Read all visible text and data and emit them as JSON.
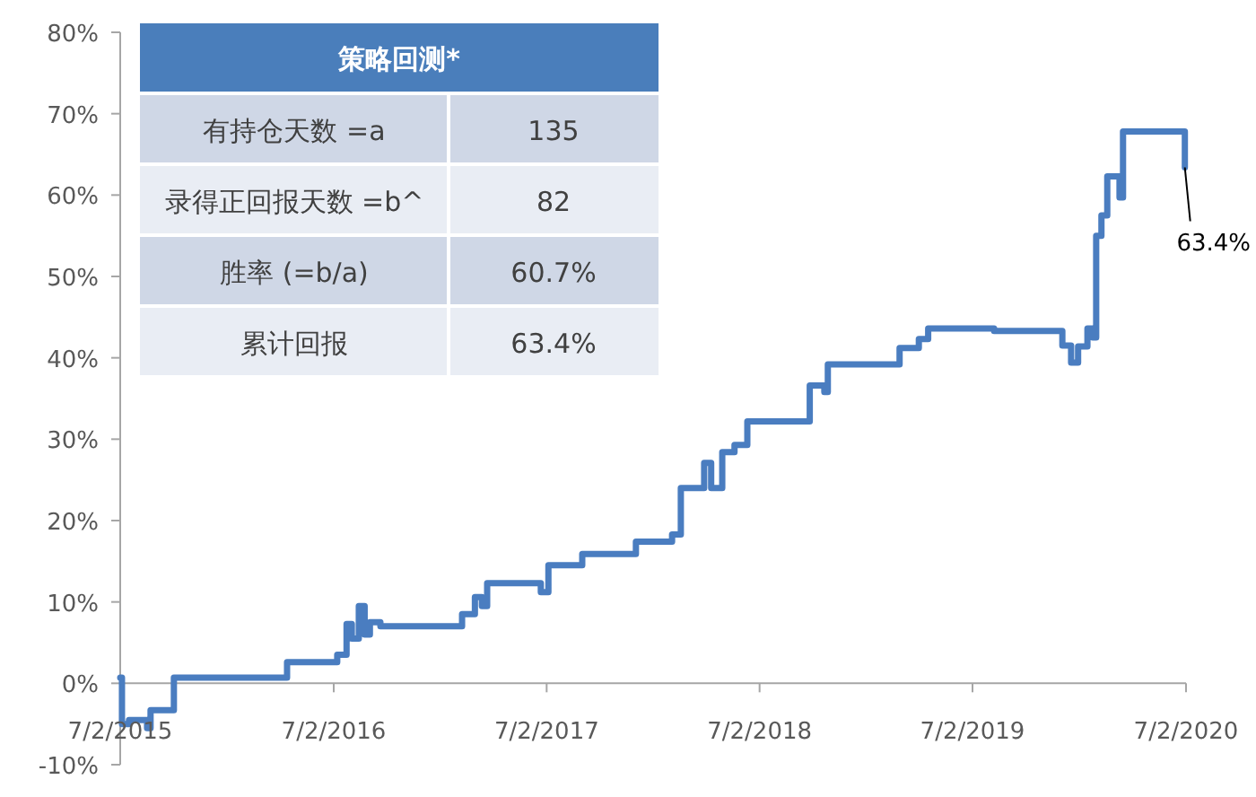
{
  "chart_data": [
    {
      "type": "step",
      "line_style": "solid",
      "marker": "none",
      "grid": false,
      "x": [
        "2015-07-02",
        "2015-07-05",
        "2015-07-17",
        "2015-08-17",
        "2015-08-23",
        "2015-10-02",
        "2016-04-13",
        "2016-07-08",
        "2016-07-24",
        "2016-08-02",
        "2016-08-14",
        "2016-08-24",
        "2016-09-02",
        "2016-09-20",
        "2017-02-07",
        "2017-03-01",
        "2017-03-13",
        "2017-03-22",
        "2017-06-22",
        "2017-07-05",
        "2017-09-01",
        "2017-12-02",
        "2018-02-02",
        "2018-02-17",
        "2018-03-29",
        "2018-04-10",
        "2018-04-29",
        "2018-05-20",
        "2018-06-11",
        "2018-09-26",
        "2018-10-21",
        "2018-10-27",
        "2019-02-27",
        "2019-04-01",
        "2019-04-17",
        "2019-08-08",
        "2019-12-03",
        "2019-12-18",
        "2019-12-30",
        "2020-01-15",
        "2020-01-24",
        "2020-01-30",
        "2020-02-08",
        "2020-02-18",
        "2020-03-10",
        "2020-03-16",
        "2020-06-30"
      ],
      "series": [
        {
          "color": "#4a7dc0",
          "values": [
            0.7,
            -5.0,
            -4.5,
            -5.5,
            -3.3,
            0.7,
            2.6,
            3.5,
            7.3,
            5.5,
            9.5,
            6.0,
            7.5,
            7.0,
            8.5,
            10.6,
            9.5,
            12.3,
            11.2,
            14.5,
            15.9,
            17.4,
            18.3,
            24.0,
            27.1,
            24.0,
            28.4,
            29.3,
            32.2,
            36.6,
            35.8,
            39.2,
            41.2,
            42.3,
            43.6,
            43.3,
            41.5,
            39.4,
            41.4,
            43.6,
            42.5,
            55.0,
            57.5,
            62.3,
            59.7,
            67.8,
            63.4
          ]
        }
      ],
      "xlim": [
        "2015-07-02",
        "2020-07-02"
      ],
      "xticks": [
        {
          "value": "2015-07-02",
          "label": "7/2/2015"
        },
        {
          "value": "2016-07-02",
          "label": "7/2/2016"
        },
        {
          "value": "2017-07-02",
          "label": "7/2/2017"
        },
        {
          "value": "2018-07-02",
          "label": "7/2/2018"
        },
        {
          "value": "2019-07-02",
          "label": "7/2/2019"
        },
        {
          "value": "2020-07-02",
          "label": "7/2/2020"
        }
      ],
      "ylim": [
        -10,
        80
      ],
      "yticks": [
        {
          "value": -10,
          "label": "-10%"
        },
        {
          "value": 0,
          "label": "0%"
        },
        {
          "value": 10,
          "label": "10%"
        },
        {
          "value": 20,
          "label": "20%"
        },
        {
          "value": 30,
          "label": "30%"
        },
        {
          "value": 40,
          "label": "40%"
        },
        {
          "value": 50,
          "label": "50%"
        },
        {
          "value": 60,
          "label": "60%"
        },
        {
          "value": 70,
          "label": "70%"
        },
        {
          "value": 80,
          "label": "80%"
        }
      ],
      "annotations": [
        {
          "text": "63.4%",
          "x": "2020-06-30",
          "y": 63.4
        }
      ]
    },
    {
      "type": "other",
      "title": "策略回测*",
      "annotations": [
        "有持仓天数 =a",
        "135",
        "录得正回报天数 =b^",
        "82",
        "胜率 (=b/a)",
        "60.7%",
        "累计回报",
        "63.4%"
      ]
    }
  ]
}
